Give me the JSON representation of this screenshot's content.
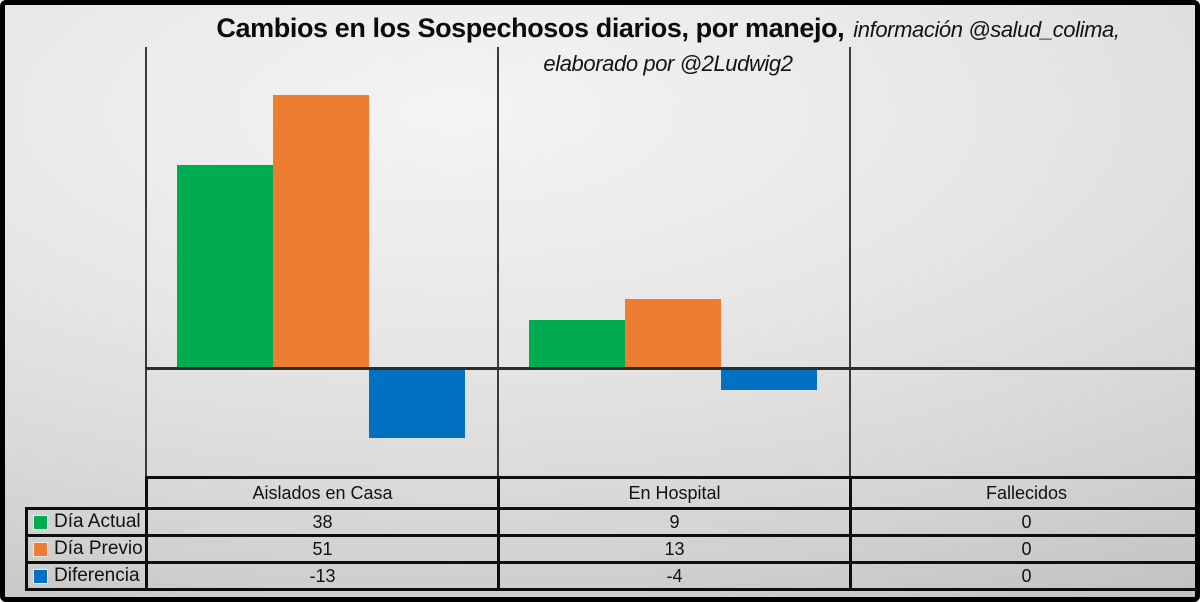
{
  "title": {
    "main": "Cambios en los Sospechosos diarios, por manejo,",
    "credit": "información @salud_colima,",
    "credit_line2": "elaborado por @2Ludwig2"
  },
  "chart_data": {
    "type": "bar",
    "categories": [
      "Aislados en Casa",
      "En Hospital",
      "Fallecidos"
    ],
    "series": [
      {
        "name": "Día Actual",
        "color": "#00AC4F",
        "values": [
          38,
          9,
          0
        ]
      },
      {
        "name": "Día Previo",
        "color": "#ED7D31",
        "values": [
          51,
          13,
          0
        ]
      },
      {
        "name": "Diferencia",
        "color": "#0070C0",
        "values": [
          -13,
          -4,
          0
        ]
      }
    ],
    "ylim": [
      -20,
      60
    ],
    "baseline": 0,
    "xlabel": "",
    "ylabel": "",
    "grid": false,
    "category_separators": true,
    "legend_position": "data-table-row-headers",
    "data_table_shown": true
  },
  "colors": {
    "axis_line": "#2d2d2d",
    "separator_line": "#3a3a3a",
    "table_border": "#0e0e0e",
    "frame": "#000000"
  }
}
